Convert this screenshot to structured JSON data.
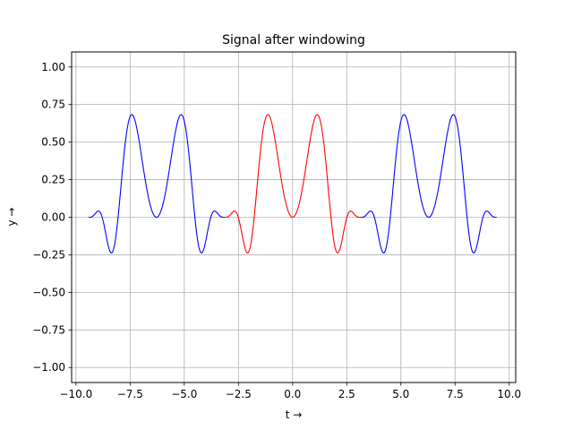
{
  "chart_data": {
    "type": "line",
    "title": "Signal after windowing",
    "xlabel": "t →",
    "ylabel": "y →",
    "xlim": [
      -10.2,
      10.3
    ],
    "ylim": [
      -1.1,
      1.1
    ],
    "grid": true,
    "xticks": [
      -10.0,
      -7.5,
      -5.0,
      -2.5,
      0.0,
      2.5,
      5.0,
      7.5,
      10.0
    ],
    "xtick_labels": [
      "−10.0",
      "−7.5",
      "−5.0",
      "−2.5",
      "0.0",
      "2.5",
      "5.0",
      "7.5",
      "10.0"
    ],
    "yticks": [
      -1.0,
      -0.75,
      -0.5,
      -0.25,
      0.0,
      0.25,
      0.5,
      0.75,
      1.0
    ],
    "ytick_labels": [
      "−1.00",
      "−0.75",
      "−0.50",
      "−0.25",
      "0.00",
      "0.25",
      "0.50",
      "0.75",
      "1.00"
    ],
    "series": [
      {
        "color": "#0000ff",
        "x_range": [
          -9.42,
          -3.14
        ],
        "formula": "sin(t^2)*cos(t/2)^2 over one window period, centred at -2pi",
        "center": -6.283,
        "half_width": 3.14
      },
      {
        "color": "#ff0000",
        "x_range": [
          -3.14,
          3.14
        ],
        "formula": "sin(t^2)*cos(t/2)^2",
        "center": 0.0,
        "half_width": 3.14
      },
      {
        "color": "#0000ff",
        "x_range": [
          3.14,
          9.42
        ],
        "formula": "sin(t^2)*cos(t/2)^2 over one window period, centred at +2pi",
        "center": 6.283,
        "half_width": 3.14
      }
    ]
  }
}
